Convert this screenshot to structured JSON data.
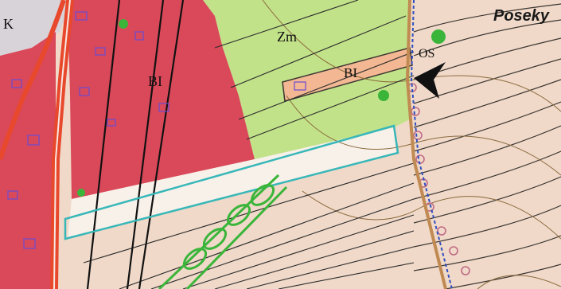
{
  "labels": {
    "place": "Poseky",
    "zone_bi_left": "BI",
    "zone_bi_right": "BI",
    "zone_zm": "Zm",
    "zone_os": "OS",
    "zone_k": "K"
  },
  "legend_colors": {
    "built_up_area": "#d9495a",
    "grassland_zm": "#c2e28a",
    "open_land": "#f0d9c9",
    "highlight_corridor": "#38b7b8",
    "green_corridor": "#3ab53a",
    "road": "#e8482c",
    "contour": "#3a3530",
    "parcel_boundary": "#6b4bd1",
    "building_bi": "#f3b893",
    "trees": "#c06a86"
  }
}
